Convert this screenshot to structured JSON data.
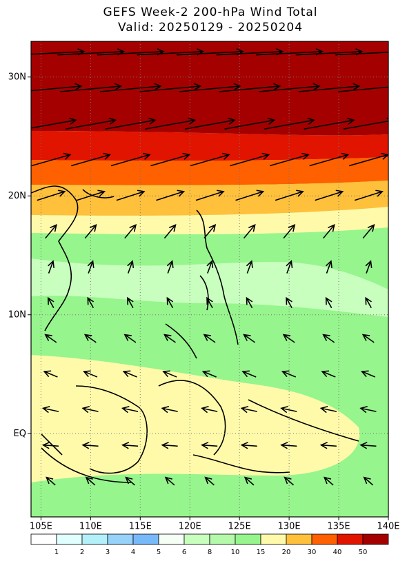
{
  "map": {
    "title": "GEFS Week-2 200-hPa Wind Total",
    "subtitle": "Valid: 20250129 - 20250204",
    "xlim": [
      104,
      140
    ],
    "ylim": [
      -7,
      33
    ],
    "xticks": [
      {
        "value": 105,
        "label": "105E"
      },
      {
        "value": 110,
        "label": "110E"
      },
      {
        "value": 115,
        "label": "115E"
      },
      {
        "value": 120,
        "label": "120E"
      },
      {
        "value": 125,
        "label": "125E"
      },
      {
        "value": 130,
        "label": "130E"
      },
      {
        "value": 135,
        "label": "135E"
      },
      {
        "value": 140,
        "label": "140E"
      }
    ],
    "yticks": [
      {
        "value": 30,
        "label": "30N"
      },
      {
        "value": 20,
        "label": "20N"
      },
      {
        "value": 10,
        "label": "10N"
      },
      {
        "value": 0,
        "label": "EQ"
      }
    ],
    "grid": true,
    "vector_lons": [
      106,
      110,
      114,
      118,
      122,
      126,
      130,
      134,
      138
    ],
    "vectors": [
      {
        "lat": 32,
        "u": 60,
        "v": 3
      },
      {
        "lat": 29,
        "u": 55,
        "v": 5
      },
      {
        "lat": 26,
        "u": 45,
        "v": 8
      },
      {
        "lat": 23,
        "u": 35,
        "v": 10
      },
      {
        "lat": 20,
        "u": 25,
        "v": 8
      },
      {
        "lat": 17,
        "u": 10,
        "v": 12
      },
      {
        "lat": 14,
        "u": 4,
        "v": 11
      },
      {
        "lat": 11,
        "u": -5,
        "v": 9
      },
      {
        "lat": 8,
        "u": -10,
        "v": 7
      },
      {
        "lat": 5,
        "u": -12,
        "v": 5
      },
      {
        "lat": 2,
        "u": -14,
        "v": 3
      },
      {
        "lat": -1,
        "u": -14,
        "v": 1
      },
      {
        "lat": -4,
        "u": -8,
        "v": 7
      }
    ],
    "colorbar": {
      "levels": [
        1,
        2,
        3,
        4,
        5,
        6,
        8,
        10,
        15,
        20,
        30,
        40,
        50
      ],
      "colors": [
        "#ffffff",
        "#e1ffff",
        "#b4f0fa",
        "#96d2fa",
        "#78b9fa",
        "#f5fff5",
        "#c8ffbe",
        "#b4faaa",
        "#96f58c",
        "#fffaaa",
        "#ffc03c",
        "#ff6000",
        "#e11400",
        "#a50000"
      ]
    }
  }
}
